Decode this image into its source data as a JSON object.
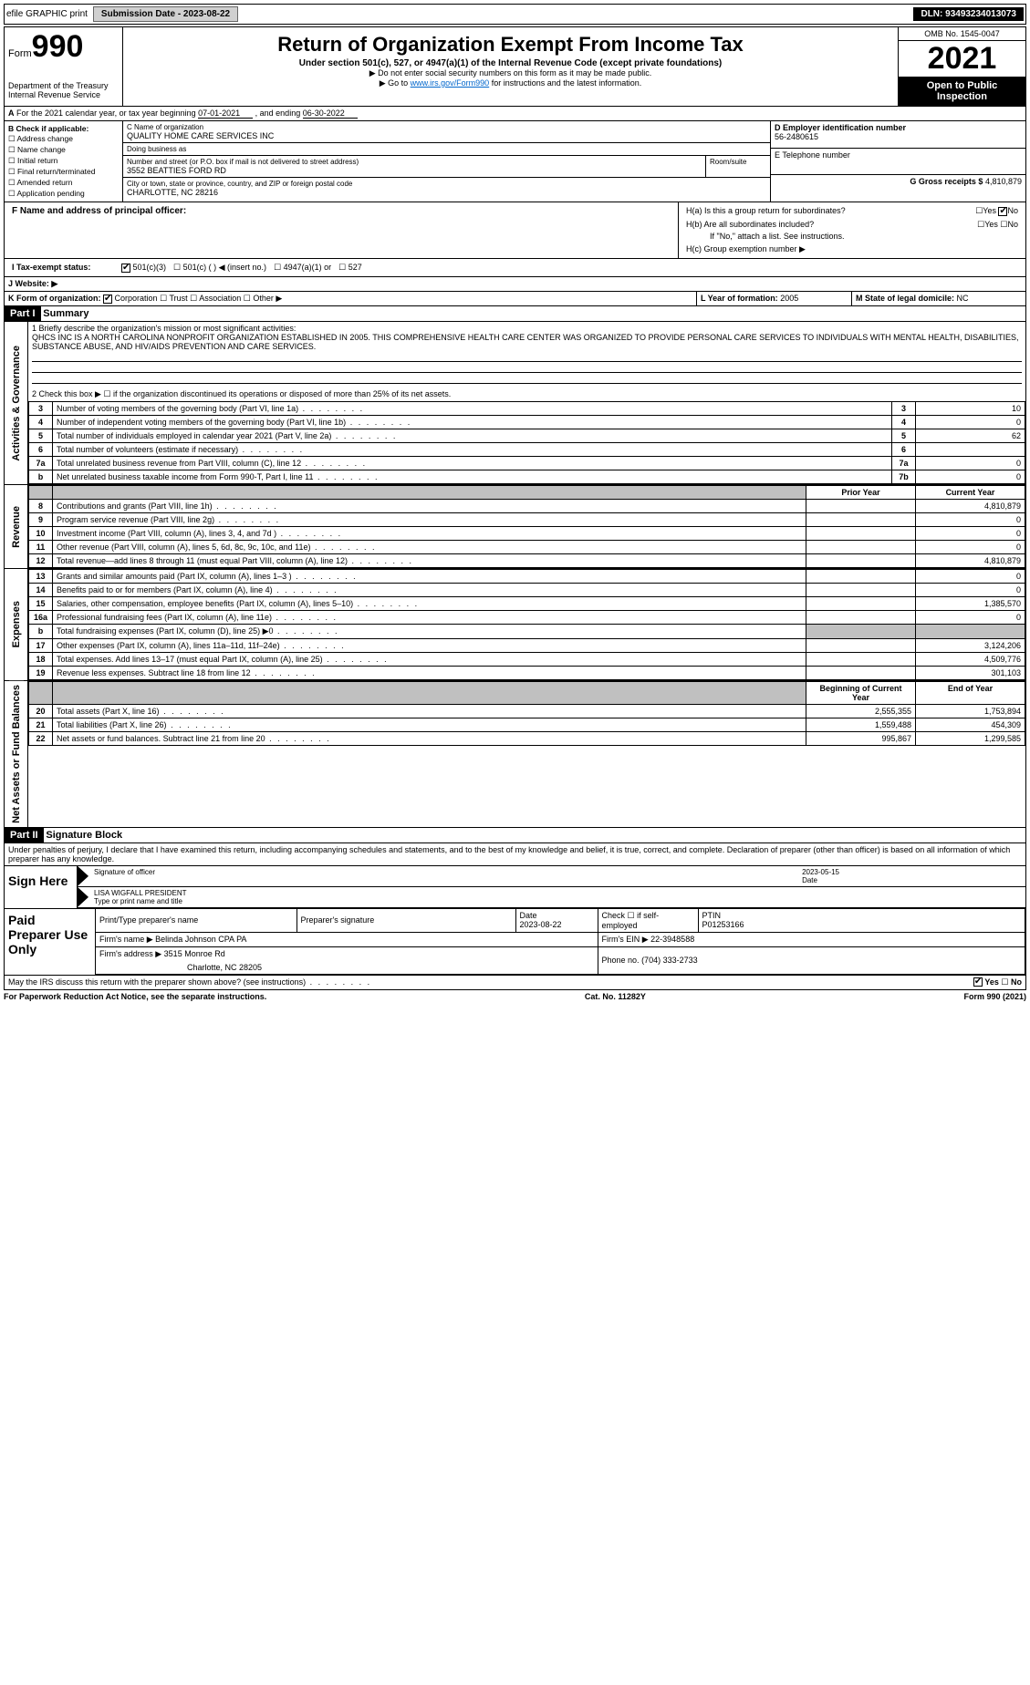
{
  "topbar": {
    "efile": "efile GRAPHIC print",
    "submission_label": "Submission Date - 2023-08-22",
    "dln": "DLN: 93493234013073"
  },
  "header": {
    "form_word": "Form",
    "form_num": "990",
    "title": "Return of Organization Exempt From Income Tax",
    "subtitle": "Under section 501(c), 527, or 4947(a)(1) of the Internal Revenue Code (except private foundations)",
    "note1": "▶ Do not enter social security numbers on this form as it may be made public.",
    "note2_pre": "▶ Go to ",
    "note2_link": "www.irs.gov/Form990",
    "note2_post": " for instructions and the latest information.",
    "dept": "Department of the Treasury",
    "irs": "Internal Revenue Service",
    "omb": "OMB No. 1545-0047",
    "year": "2021",
    "inspect": "Open to Public Inspection"
  },
  "sectionA": {
    "text_pre": "For the 2021 calendar year, or tax year beginning ",
    "begin": "07-01-2021",
    "mid": " , and ending ",
    "end": "06-30-2022"
  },
  "sectionB": {
    "label": "B Check if applicable:",
    "items": [
      "Address change",
      "Name change",
      "Initial return",
      "Final return/terminated",
      "Amended return",
      "Application pending"
    ]
  },
  "sectionC": {
    "name_label": "C Name of organization",
    "name": "QUALITY HOME CARE SERVICES INC",
    "dba_label": "Doing business as",
    "dba": "",
    "addr_label": "Number and street (or P.O. box if mail is not delivered to street address)",
    "room_label": "Room/suite",
    "addr": "3552 BEATTIES FORD RD",
    "city_label": "City or town, state or province, country, and ZIP or foreign postal code",
    "city": "CHARLOTTE, NC  28216"
  },
  "sectionD": {
    "label": "D Employer identification number",
    "value": "56-2480615"
  },
  "sectionE": {
    "label": "E Telephone number",
    "value": ""
  },
  "sectionG": {
    "label": "G Gross receipts $",
    "value": "4,810,879"
  },
  "sectionF": {
    "label": "F  Name and address of principal officer:",
    "value": ""
  },
  "sectionH": {
    "a": "H(a)  Is this a group return for subordinates?",
    "b": "H(b)  Are all subordinates included?",
    "b_note": "If \"No,\" attach a list. See instructions.",
    "c": "H(c)  Group exemption number ▶",
    "yes": "Yes",
    "no": "No"
  },
  "sectionI": {
    "label": "I   Tax-exempt status:",
    "opts": [
      "501(c)(3)",
      "501(c) (  ) ◀ (insert no.)",
      "4947(a)(1) or",
      "527"
    ]
  },
  "sectionJ": {
    "label": "J   Website: ▶",
    "value": ""
  },
  "sectionK": {
    "label": "K Form of organization:",
    "opts": [
      "Corporation",
      "Trust",
      "Association",
      "Other ▶"
    ]
  },
  "sectionL": {
    "label": "L Year of formation:",
    "value": "2005"
  },
  "sectionM": {
    "label": "M State of legal domicile:",
    "value": "NC"
  },
  "partI": {
    "hdr": "Part I",
    "title": "Summary",
    "line1_label": "1  Briefly describe the organization's mission or most significant activities:",
    "mission": "QHCS INC IS A NORTH CAROLINA NONPROFIT ORGANIZATION ESTABLISHED IN 2005. THIS COMPREHENSIVE HEALTH CARE CENTER WAS ORGANIZED TO PROVIDE PERSONAL CARE SERVICES TO INDIVIDUALS WITH MENTAL HEALTH, DISABILITIES, SUBSTANCE ABUSE, AND HIV/AIDS PREVENTION AND CARE SERVICES.",
    "line2": "2   Check this box ▶ ☐  if the organization discontinued its operations or disposed of more than 25% of its net assets.",
    "tabs": {
      "gov": "Activities & Governance",
      "rev": "Revenue",
      "exp": "Expenses",
      "net": "Net Assets or Fund Balances"
    },
    "gov_lines": [
      {
        "n": "3",
        "d": "Number of voting members of the governing body (Part VI, line 1a)",
        "box": "3",
        "v": "10"
      },
      {
        "n": "4",
        "d": "Number of independent voting members of the governing body (Part VI, line 1b)",
        "box": "4",
        "v": "0"
      },
      {
        "n": "5",
        "d": "Total number of individuals employed in calendar year 2021 (Part V, line 2a)",
        "box": "5",
        "v": "62"
      },
      {
        "n": "6",
        "d": "Total number of volunteers (estimate if necessary)",
        "box": "6",
        "v": ""
      },
      {
        "n": "7a",
        "d": "Total unrelated business revenue from Part VIII, column (C), line 12",
        "box": "7a",
        "v": "0"
      },
      {
        "n": "b",
        "d": "Net unrelated business taxable income from Form 990-T, Part I, line 11",
        "box": "7b",
        "v": "0"
      }
    ],
    "col_prior": "Prior Year",
    "col_current": "Current Year",
    "rev_lines": [
      {
        "n": "8",
        "d": "Contributions and grants (Part VIII, line 1h)",
        "p": "",
        "c": "4,810,879"
      },
      {
        "n": "9",
        "d": "Program service revenue (Part VIII, line 2g)",
        "p": "",
        "c": "0"
      },
      {
        "n": "10",
        "d": "Investment income (Part VIII, column (A), lines 3, 4, and 7d )",
        "p": "",
        "c": "0"
      },
      {
        "n": "11",
        "d": "Other revenue (Part VIII, column (A), lines 5, 6d, 8c, 9c, 10c, and 11e)",
        "p": "",
        "c": "0"
      },
      {
        "n": "12",
        "d": "Total revenue—add lines 8 through 11 (must equal Part VIII, column (A), line 12)",
        "p": "",
        "c": "4,810,879"
      }
    ],
    "exp_lines": [
      {
        "n": "13",
        "d": "Grants and similar amounts paid (Part IX, column (A), lines 1–3 )",
        "p": "",
        "c": "0"
      },
      {
        "n": "14",
        "d": "Benefits paid to or for members (Part IX, column (A), line 4)",
        "p": "",
        "c": "0"
      },
      {
        "n": "15",
        "d": "Salaries, other compensation, employee benefits (Part IX, column (A), lines 5–10)",
        "p": "",
        "c": "1,385,570"
      },
      {
        "n": "16a",
        "d": "Professional fundraising fees (Part IX, column (A), line 11e)",
        "p": "",
        "c": "0"
      },
      {
        "n": "b",
        "d": "Total fundraising expenses (Part IX, column (D), line 25) ▶0",
        "p": "SHADE",
        "c": "SHADE"
      },
      {
        "n": "17",
        "d": "Other expenses (Part IX, column (A), lines 11a–11d, 11f–24e)",
        "p": "",
        "c": "3,124,206"
      },
      {
        "n": "18",
        "d": "Total expenses. Add lines 13–17 (must equal Part IX, column (A), line 25)",
        "p": "",
        "c": "4,509,776"
      },
      {
        "n": "19",
        "d": "Revenue less expenses. Subtract line 18 from line 12",
        "p": "",
        "c": "301,103"
      }
    ],
    "col_begin": "Beginning of Current Year",
    "col_end": "End of Year",
    "net_lines": [
      {
        "n": "20",
        "d": "Total assets (Part X, line 16)",
        "p": "2,555,355",
        "c": "1,753,894"
      },
      {
        "n": "21",
        "d": "Total liabilities (Part X, line 26)",
        "p": "1,559,488",
        "c": "454,309"
      },
      {
        "n": "22",
        "d": "Net assets or fund balances. Subtract line 21 from line 20",
        "p": "995,867",
        "c": "1,299,585"
      }
    ]
  },
  "partII": {
    "hdr": "Part II",
    "title": "Signature Block",
    "perjury": "Under penalties of perjury, I declare that I have examined this return, including accompanying schedules and statements, and to the best of my knowledge and belief, it is true, correct, and complete. Declaration of preparer (other than officer) is based on all information of which preparer has any knowledge.",
    "sign_here": "Sign Here",
    "sig_officer": "Signature of officer",
    "sig_date": "2023-05-15",
    "date_label": "Date",
    "officer_name": "LISA WIGFALL  PRESIDENT",
    "type_name": "Type or print name and title",
    "paid": "Paid Preparer Use Only",
    "prep_name_label": "Print/Type preparer's name",
    "prep_sig_label": "Preparer's signature",
    "prep_date_label": "Date",
    "prep_date": "2023-08-22",
    "self_emp": "Check ☐ if self-employed",
    "ptin_label": "PTIN",
    "ptin": "P01253166",
    "firm_name_label": "Firm's name    ▶",
    "firm_name": "Belinda Johnson CPA PA",
    "firm_ein_label": "Firm's EIN ▶",
    "firm_ein": "22-3948588",
    "firm_addr_label": "Firm's address ▶",
    "firm_addr1": "3515 Monroe Rd",
    "firm_addr2": "Charlotte, NC  28205",
    "phone_label": "Phone no.",
    "phone": "(704) 333-2733",
    "discuss": "May the IRS discuss this return with the preparer shown above? (see instructions)",
    "yes": "Yes",
    "no": "No"
  },
  "footer": {
    "left": "For Paperwork Reduction Act Notice, see the separate instructions.",
    "mid": "Cat. No. 11282Y",
    "right": "Form 990 (2021)"
  },
  "colors": {
    "link": "#0066cc",
    "black": "#000000",
    "shade": "#c0c0c0"
  }
}
